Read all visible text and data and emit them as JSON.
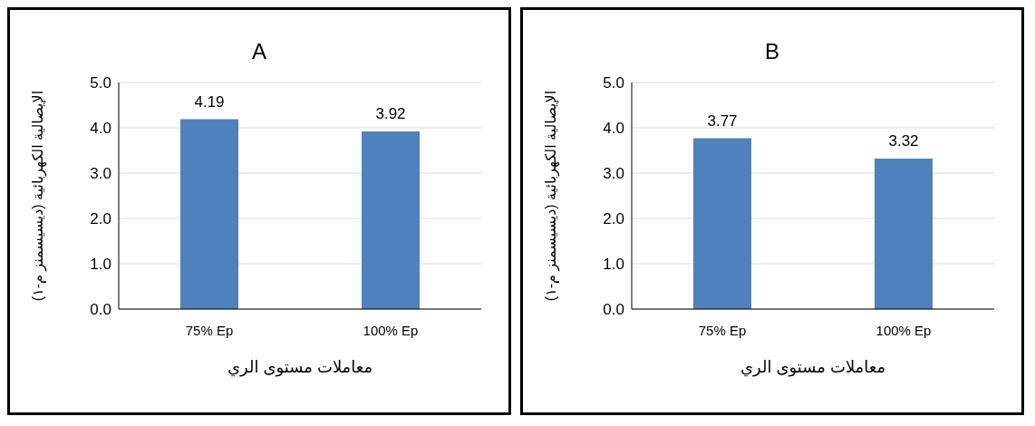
{
  "chart_data": [
    {
      "type": "bar",
      "title": "A",
      "categories": [
        "75% Ep",
        "100% Ep"
      ],
      "values": [
        4.19,
        3.92
      ],
      "color": "#4f81bd",
      "ylim": [
        0,
        5
      ],
      "yticks": [
        {
          "value": 0,
          "label": "0.0"
        },
        {
          "value": 1,
          "label": "1.0"
        },
        {
          "value": 2,
          "label": "2.0"
        },
        {
          "value": 3,
          "label": "3.0"
        },
        {
          "value": 4,
          "label": "4.0"
        },
        {
          "value": 5,
          "label": "5.0"
        }
      ],
      "grid": "y",
      "data_labels": true,
      "xlabel": "معاملات مستوى الري",
      "ylabel": "الإيصالية الكهربائية (ديسيسمنز م-١)"
    },
    {
      "type": "bar",
      "title": "B",
      "categories": [
        "75% Ep",
        "100% Ep"
      ],
      "values": [
        3.77,
        3.32
      ],
      "color": "#4f81bd",
      "ylim": [
        0,
        5
      ],
      "yticks": [
        {
          "value": 0,
          "label": "0.0"
        },
        {
          "value": 1,
          "label": "1.0"
        },
        {
          "value": 2,
          "label": "2.0"
        },
        {
          "value": 3,
          "label": "3.0"
        },
        {
          "value": 4,
          "label": "4.0"
        },
        {
          "value": 5,
          "label": "5.0"
        }
      ],
      "grid": "y",
      "data_labels": true,
      "xlabel": "معاملات مستوى الري",
      "ylabel": "الإيصالية الكهربائية (ديسيسمنز م-١)"
    }
  ]
}
